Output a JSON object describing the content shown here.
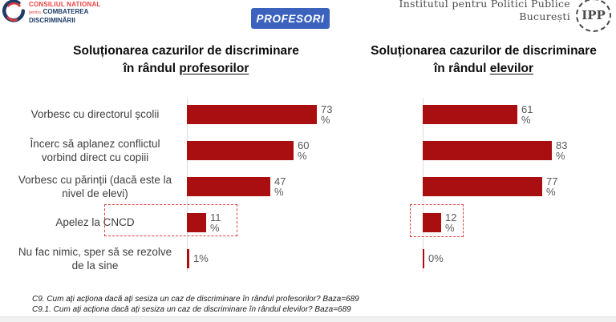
{
  "colors": {
    "bar_red": "#A90E10",
    "highlight_dashed_red": "#E0393B",
    "badge_blue": "#3B63BE",
    "cncd_logo_red": "#E8413E",
    "cncd_logo_navy": "#1E3C68",
    "value_label_gray": "#595959"
  },
  "header": {
    "cncd_logo": {
      "line1": "CONSILIUL NATIONAL",
      "line2_prefix": "pentru",
      "line2": "COMBATEREA",
      "line3": "DISCRIMINĂRII"
    },
    "badge_label": "PROFESORI",
    "ipp_logo": {
      "line1": "Institutul pentru Politici Publice",
      "line2": "București",
      "seal": "IPP"
    }
  },
  "chart_data": [
    {
      "type": "bar",
      "orientation": "horizontal",
      "title_line1": "Soluționarea cazurilor de discriminare",
      "title_line2_prefix": "în rândul ",
      "title_line2_underlined": "profesorilor",
      "categories": [
        "Vorbesc cu directorul școlii",
        "Încerc să aplanez conflictul vorbind direct cu copiii",
        "Vorbesc cu părinții (dacă este la nivel de elevi)",
        "Apelez la CNCD",
        "Nu fac nimic, sper să se rezolve de la sine"
      ],
      "values": [
        73,
        60,
        47,
        11,
        1
      ],
      "value_labels": [
        "73\n%",
        "60\n%",
        "47\n%",
        "11\n%",
        "1%"
      ],
      "bar_color": "#A90E10",
      "xlim": [
        0,
        80
      ],
      "grid": false,
      "legend": "none",
      "highlighted_category": "Apelez la CNCD"
    },
    {
      "type": "bar",
      "orientation": "horizontal",
      "title_line1": "Soluționarea cazurilor de discriminare",
      "title_line2_prefix": "în rândul ",
      "title_line2_underlined": "elevilor",
      "categories": [
        "Vorbesc cu directorul școlii",
        "Încerc să aplanez conflictul vorbind direct cu copiii",
        "Vorbesc cu părinții (dacă este la nivel de elevi)",
        "Apelez la CNCD",
        "Nu fac nimic, sper să se rezolve de la sine"
      ],
      "values": [
        61,
        83,
        77,
        12,
        0
      ],
      "value_labels": [
        "61\n%",
        "83\n%",
        "77\n%",
        "12\n%",
        "0%"
      ],
      "bar_color": "#A90E10",
      "xlim": [
        0,
        90
      ],
      "grid": false,
      "legend": "none",
      "highlighted_category": "Apelez la CNCD"
    }
  ],
  "footer": {
    "line1": "C9. Cum ați acționa dacă ați sesiza un caz de discriminare în rândul profesorilor? Baza=689",
    "line2": "C9.1. Cum ați acționa dacă ați sesiza un caz de discriminare în rândul elevilor? Baza=689"
  }
}
